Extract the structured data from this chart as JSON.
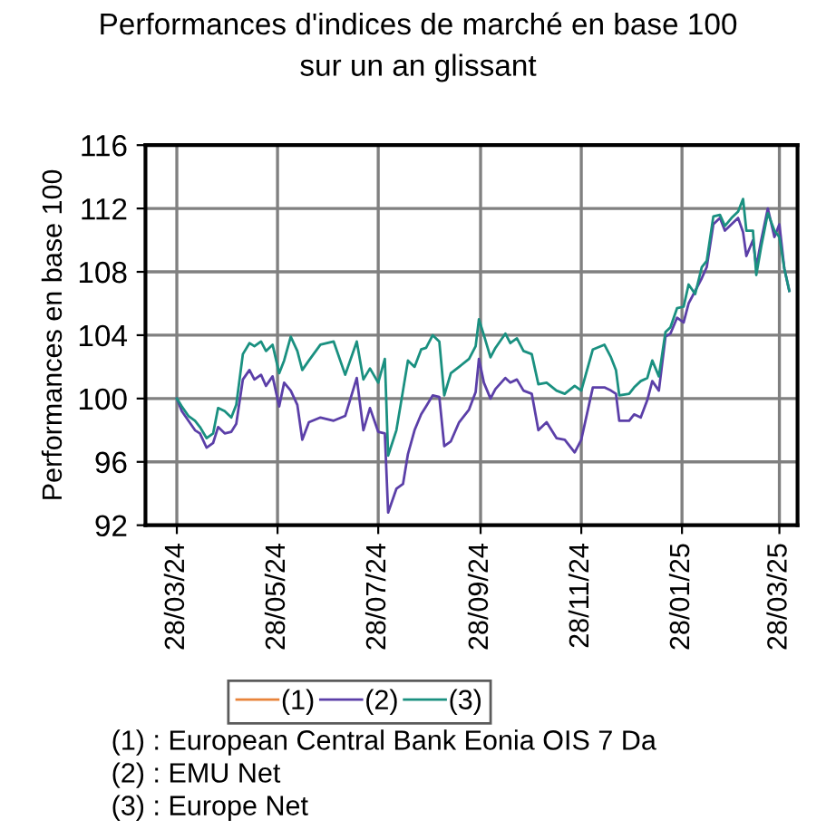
{
  "chart_data": {
    "type": "line",
    "title": "Performances d'indices de marché en base 100\nsur un an glissant",
    "ylabel": "Performances en base 100",
    "x": [
      "2024-03-28",
      "2024-03-31",
      "2024-04-04",
      "2024-04-08",
      "2024-04-11",
      "2024-04-15",
      "2024-04-19",
      "2024-04-22",
      "2024-04-26",
      "2024-04-30",
      "2024-05-03",
      "2024-05-07",
      "2024-05-11",
      "2024-05-14",
      "2024-05-18",
      "2024-05-21",
      "2024-05-25",
      "2024-05-29",
      "2024-06-01",
      "2024-06-05",
      "2024-06-09",
      "2024-06-12",
      "2024-06-16",
      "2024-06-23",
      "2024-07-01",
      "2024-07-08",
      "2024-07-15",
      "2024-07-19",
      "2024-07-23",
      "2024-07-28",
      "2024-08-01",
      "2024-08-03",
      "2024-08-08",
      "2024-08-12",
      "2024-08-15",
      "2024-08-19",
      "2024-08-23",
      "2024-08-26",
      "2024-08-30",
      "2024-09-03",
      "2024-09-06",
      "2024-09-10",
      "2024-09-15",
      "2024-09-21",
      "2024-09-25",
      "2024-09-27",
      "2024-09-30",
      "2024-10-04",
      "2024-10-07",
      "2024-10-13",
      "2024-10-16",
      "2024-10-20",
      "2024-10-24",
      "2024-10-29",
      "2024-11-02",
      "2024-11-07",
      "2024-11-13",
      "2024-11-18",
      "2024-11-24",
      "2024-11-28",
      "2024-12-05",
      "2024-12-12",
      "2024-12-16",
      "2024-12-19",
      "2024-12-21",
      "2024-12-27",
      "2024-12-30",
      "2025-01-03",
      "2025-01-07",
      "2025-01-10",
      "2025-01-14",
      "2025-01-18",
      "2025-01-21",
      "2025-01-25",
      "2025-01-29",
      "2025-02-01",
      "2025-02-05",
      "2025-02-09",
      "2025-02-12",
      "2025-02-16",
      "2025-02-20",
      "2025-02-23",
      "2025-02-27",
      "2025-03-03",
      "2025-03-06",
      "2025-03-08",
      "2025-03-12",
      "2025-03-14",
      "2025-03-17",
      "2025-03-21",
      "2025-03-25",
      "2025-03-28",
      "2025-03-31",
      "2025-04-03"
    ],
    "series": [
      {
        "name": "(1)",
        "color": "#e8833a",
        "values": [
          null,
          null,
          null,
          null,
          null,
          null,
          null,
          null,
          null,
          null,
          null,
          null,
          null,
          null,
          null,
          null,
          null,
          null,
          null,
          null,
          null,
          null,
          null,
          null,
          null,
          null,
          null,
          null,
          null,
          null,
          null,
          null,
          null,
          null,
          null,
          null,
          null,
          null,
          null,
          null,
          null,
          null,
          null,
          null,
          null,
          null,
          null,
          null,
          null,
          null,
          null,
          null,
          null,
          null,
          null,
          null,
          null,
          null,
          null,
          null,
          null,
          null,
          null,
          null,
          null,
          null,
          null,
          null,
          null,
          null,
          null,
          null,
          null,
          null,
          null,
          null,
          null,
          null,
          null,
          null,
          null,
          null,
          null,
          null,
          null,
          null,
          null,
          null,
          null,
          null,
          null,
          null,
          null,
          null
        ]
      },
      {
        "name": "(2)",
        "color": "#5b3fa8",
        "values": [
          100,
          99.2,
          98.6,
          98.0,
          97.8,
          96.9,
          97.2,
          98.2,
          97.8,
          97.9,
          98.4,
          101.2,
          101.8,
          101.2,
          101.5,
          100.8,
          101.4,
          99.5,
          101.0,
          100.5,
          99.6,
          97.4,
          98.5,
          98.8,
          98.6,
          98.9,
          101.3,
          98.0,
          99.4,
          97.9,
          97.8,
          92.8,
          94.3,
          94.6,
          96.5,
          98.0,
          99.0,
          99.5,
          100.2,
          100.1,
          97.0,
          97.3,
          98.5,
          99.3,
          100.4,
          102.5,
          101.0,
          100.0,
          100.6,
          101.3,
          101.0,
          101.2,
          100.5,
          100.3,
          98.0,
          98.5,
          97.5,
          97.4,
          96.6,
          97.4,
          100.7,
          100.7,
          100.5,
          100.3,
          98.6,
          98.6,
          99.0,
          98.8,
          99.9,
          101.1,
          100.5,
          103.9,
          104.1,
          105.1,
          104.8,
          106.0,
          106.8,
          107.6,
          108.3,
          111.0,
          111.4,
          110.6,
          111.0,
          111.4,
          110.5,
          109.0,
          110.0,
          108.3,
          110.0,
          112.0,
          110.2,
          111.0,
          108.2,
          106.8
        ]
      },
      {
        "name": "(3)",
        "color": "#1a9080",
        "values": [
          100,
          99.5,
          98.9,
          98.6,
          98.2,
          97.5,
          97.8,
          99.4,
          99.2,
          98.8,
          99.6,
          102.8,
          103.5,
          103.3,
          103.6,
          103.0,
          103.4,
          101.6,
          102.4,
          103.9,
          103.0,
          101.8,
          102.4,
          103.4,
          103.6,
          101.5,
          103.6,
          101.2,
          101.9,
          101.0,
          102.5,
          96.4,
          98.0,
          100.5,
          102.4,
          102.0,
          103.1,
          103.2,
          104.0,
          103.6,
          100.2,
          101.6,
          102.0,
          102.5,
          103.3,
          105.0,
          104.0,
          102.6,
          103.2,
          104.1,
          103.5,
          103.8,
          103.0,
          102.8,
          100.9,
          101.0,
          100.5,
          100.3,
          100.8,
          100.5,
          103.1,
          103.4,
          102.6,
          101.8,
          100.2,
          100.3,
          100.7,
          101.1,
          101.3,
          102.4,
          101.4,
          104.2,
          104.5,
          105.7,
          105.8,
          107.2,
          106.6,
          108.3,
          108.7,
          111.5,
          111.6,
          110.9,
          111.4,
          111.8,
          112.6,
          110.6,
          110.6,
          107.8,
          109.6,
          111.7,
          110.6,
          110.2,
          108.2,
          106.8
        ]
      }
    ],
    "xlim": [
      "2024-03-09",
      "2025-04-08"
    ],
    "xticks": [
      {
        "value": "2024-03-28",
        "label": "28/03/24"
      },
      {
        "value": "2024-05-28",
        "label": "28/05/24"
      },
      {
        "value": "2024-07-28",
        "label": "28/07/24"
      },
      {
        "value": "2024-09-28",
        "label": "28/09/24"
      },
      {
        "value": "2024-11-28",
        "label": "28/11/24"
      },
      {
        "value": "2025-01-28",
        "label": "28/01/25"
      },
      {
        "value": "2025-03-28",
        "label": "28/03/25"
      }
    ],
    "ylim": [
      92,
      116
    ],
    "yticks": [
      92,
      96,
      100,
      104,
      108,
      112,
      116
    ],
    "grid": true,
    "legend": "bottom",
    "marker": "none",
    "line_style": "solid",
    "annotations": [
      "(1) : European Central Bank Eonia OIS 7 Da",
      "(2) : EMU Net",
      "(3) : Europe Net"
    ]
  }
}
